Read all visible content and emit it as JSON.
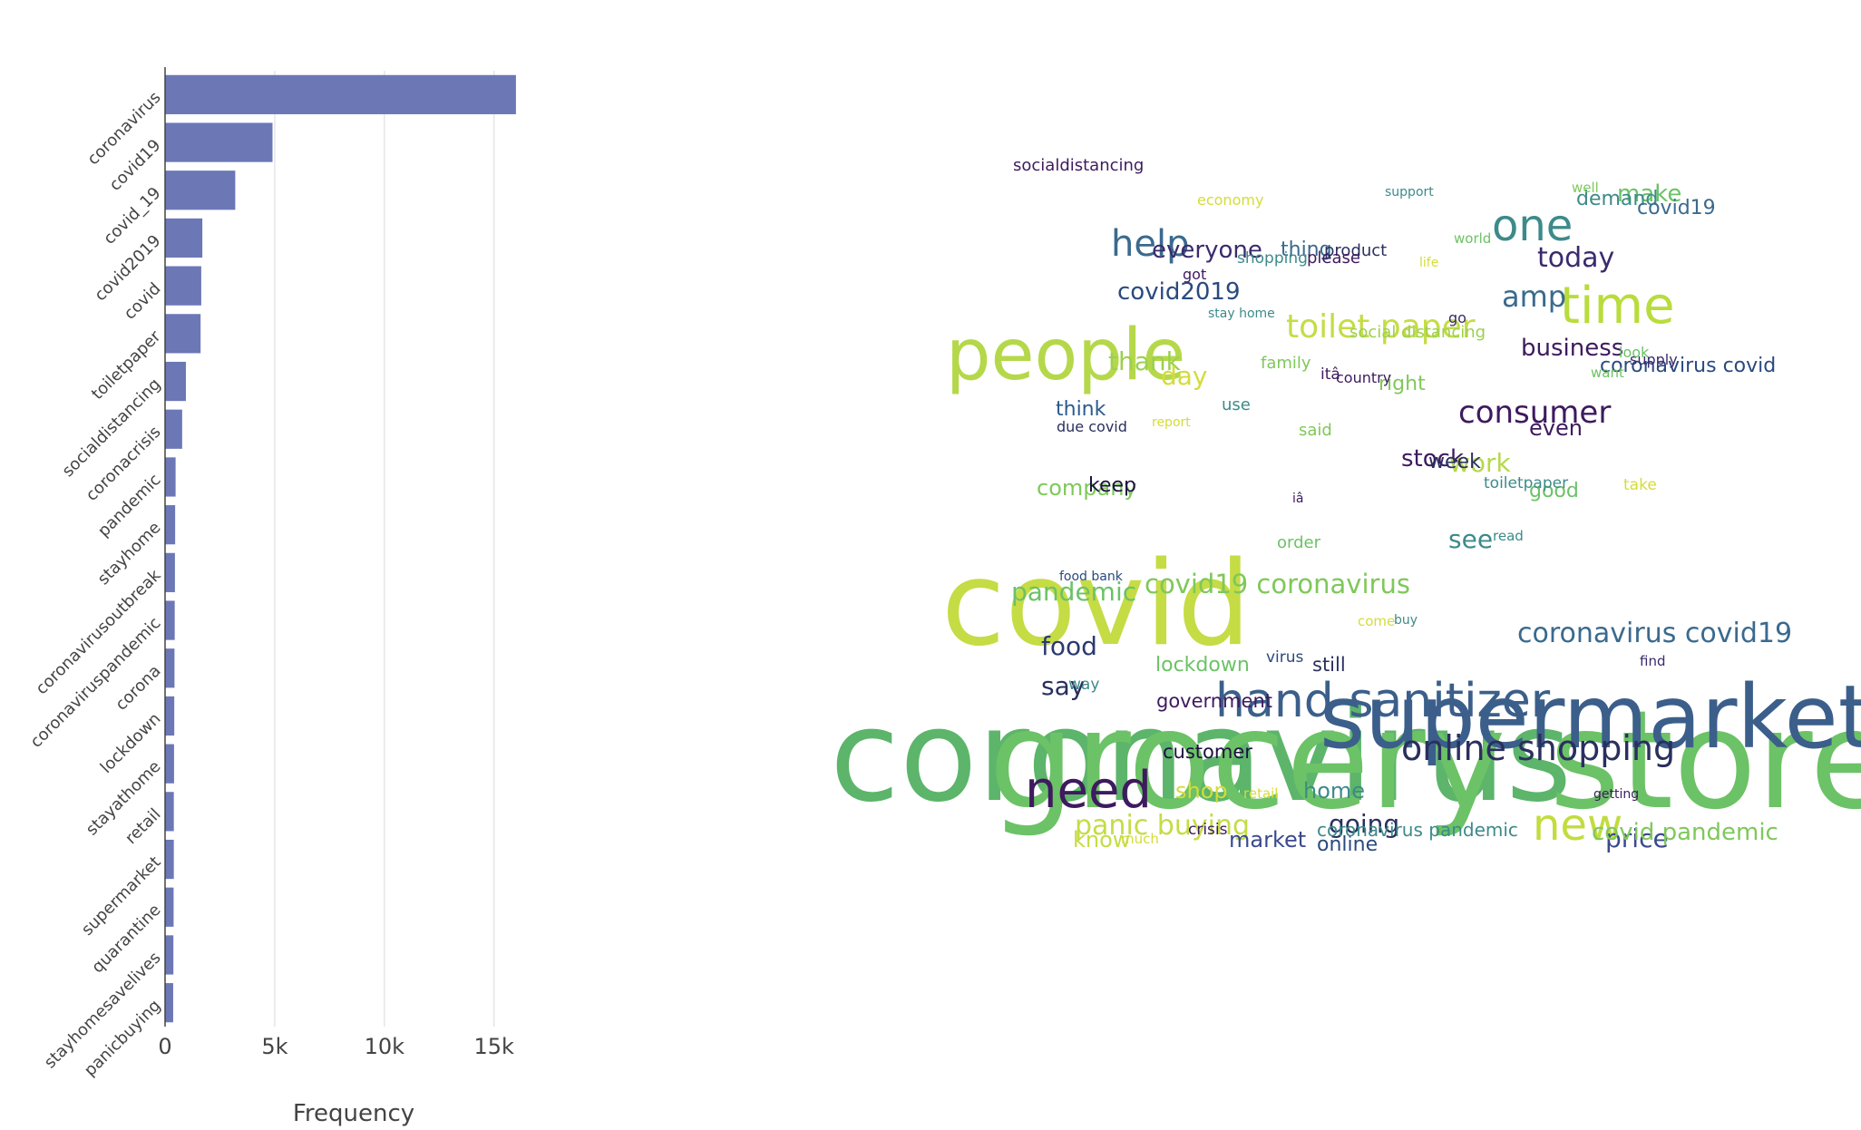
{
  "chart_data": [
    {
      "type": "bar",
      "orientation": "horizontal",
      "categories": [
        "coronavirus",
        "covid19",
        "covid_19",
        "covid2019",
        "covid",
        "toiletpaper",
        "socialdistancing",
        "coronacrisis",
        "pandemic",
        "stayhome",
        "coronavirusoutbreak",
        "coronaviruspandemic",
        "corona",
        "lockdown",
        "stayathome",
        "retail",
        "supermarket",
        "quarantine",
        "stayhomesavelives",
        "panicbuying"
      ],
      "values": [
        16000,
        4900,
        3200,
        1700,
        1650,
        1620,
        950,
        780,
        480,
        460,
        450,
        440,
        430,
        420,
        410,
        400,
        400,
        390,
        380,
        370
      ],
      "xlabel": "Frequency",
      "xlim": [
        0,
        16500
      ],
      "xticks": [
        0,
        5000,
        10000,
        15000
      ],
      "xtick_labels": [
        "0",
        "5k",
        "10k",
        "15k"
      ],
      "grid": true,
      "bar_color": "#6c77b6"
    },
    {
      "type": "wordcloud",
      "words": [
        {
          "text": "coronavirus",
          "weight": 120,
          "color": "#5cb56a"
        },
        {
          "text": "grocery store",
          "weight": 118,
          "color": "#6cc266"
        },
        {
          "text": "supermarket",
          "weight": 88,
          "color": "#3b5f8a"
        },
        {
          "text": "covid",
          "weight": 104,
          "color": "#c5dc45"
        },
        {
          "text": "people",
          "weight": 70,
          "color": "#b5d84a"
        },
        {
          "text": "hand sanitizer",
          "weight": 52,
          "color": "#3b5f8a"
        },
        {
          "text": "time",
          "weight": 50,
          "color": "#b9dc3c"
        },
        {
          "text": "need",
          "weight": 48,
          "color": "#3e1a5e"
        },
        {
          "text": "one",
          "weight": 44,
          "color": "#3d8a8a"
        },
        {
          "text": "new",
          "weight": 42,
          "color": "#c2dc3e"
        },
        {
          "text": "online shopping",
          "weight": 38,
          "color": "#2a2f5e"
        },
        {
          "text": "help",
          "weight": 36,
          "color": "#3a6a8e"
        },
        {
          "text": "toilet paper",
          "weight": 34,
          "color": "#c5dc45"
        },
        {
          "text": "consumer",
          "weight": 32,
          "color": "#3e1a5e"
        },
        {
          "text": "coronavirus covid19",
          "weight": 30,
          "color": "#3a6a8e"
        },
        {
          "text": "pandemic",
          "weight": 29,
          "color": "#6cc266"
        },
        {
          "text": "covid19 coronavirus",
          "weight": 29,
          "color": "#7fc85a"
        },
        {
          "text": "amp",
          "weight": 30,
          "color": "#3a6a8e"
        },
        {
          "text": "today",
          "weight": 28,
          "color": "#3a2a6e"
        },
        {
          "text": "food",
          "weight": 28,
          "color": "#2a3a6e"
        },
        {
          "text": "say",
          "weight": 28,
          "color": "#2a2f5e"
        },
        {
          "text": "panic buying",
          "weight": 28,
          "color": "#c5dc45"
        },
        {
          "text": "going",
          "weight": 27,
          "color": "#2a2f5e"
        },
        {
          "text": "price",
          "weight": 27,
          "color": "#3a4a8e"
        },
        {
          "text": "covid pandemic",
          "weight": 24,
          "color": "#7fc85a"
        },
        {
          "text": "covid2019",
          "weight": 24,
          "color": "#2a4a7e"
        },
        {
          "text": "thank",
          "weight": 24,
          "color": "#9cd050"
        },
        {
          "text": "day",
          "weight": 26,
          "color": "#d4dc3a"
        },
        {
          "text": "business",
          "weight": 24,
          "color": "#3e1a5e"
        },
        {
          "text": "everyone",
          "weight": 24,
          "color": "#3a2a6e"
        },
        {
          "text": "stock",
          "weight": 24,
          "color": "#3e1a5e"
        },
        {
          "text": "work",
          "weight": 24,
          "color": "#b5d84a"
        },
        {
          "text": "see",
          "weight": 26,
          "color": "#3d8a8a"
        },
        {
          "text": "make",
          "weight": 24,
          "color": "#6cc266"
        },
        {
          "text": "coronavirus covid",
          "weight": 21,
          "color": "#2a4a7e"
        },
        {
          "text": "home",
          "weight": 22,
          "color": "#3d8a8a"
        },
        {
          "text": "market",
          "weight": 22,
          "color": "#3a4a8e"
        },
        {
          "text": "know",
          "weight": 22,
          "color": "#c5dc45"
        },
        {
          "text": "shop",
          "weight": 22,
          "color": "#d4dc3a"
        },
        {
          "text": "online",
          "weight": 20,
          "color": "#2a4a7e"
        },
        {
          "text": "coronavirus pandemic",
          "weight": 18,
          "color": "#3d8a8a"
        },
        {
          "text": "lockdown",
          "weight": 20,
          "color": "#6cc266"
        },
        {
          "text": "company",
          "weight": 22,
          "color": "#7fc85a"
        },
        {
          "text": "keep",
          "weight": 20,
          "color": "#1e1040"
        },
        {
          "text": "even",
          "weight": 22,
          "color": "#3e1a5e"
        },
        {
          "text": "week",
          "weight": 20,
          "color": "#2a2f5e"
        },
        {
          "text": "right",
          "weight": 20,
          "color": "#7fc85a"
        },
        {
          "text": "thing",
          "weight": 20,
          "color": "#3a6a8e"
        },
        {
          "text": "think",
          "weight": 20,
          "color": "#2a5a8e"
        },
        {
          "text": "customer",
          "weight": 20,
          "color": "#1e1040"
        },
        {
          "text": "government",
          "weight": 20,
          "color": "#3e1a5e"
        },
        {
          "text": "demand",
          "weight": 20,
          "color": "#3d8a8a"
        },
        {
          "text": "covid19",
          "weight": 20,
          "color": "#3a6a8e"
        },
        {
          "text": "good",
          "weight": 20,
          "color": "#6cc266"
        },
        {
          "text": "still",
          "weight": 20,
          "color": "#2a2f5e"
        },
        {
          "text": "social distancing",
          "weight": 17,
          "color": "#9cd050"
        },
        {
          "text": "family",
          "weight": 17,
          "color": "#7fc85a"
        },
        {
          "text": "use",
          "weight": 17,
          "color": "#3d8a8a"
        },
        {
          "text": "said",
          "weight": 17,
          "color": "#7fc85a"
        },
        {
          "text": "order",
          "weight": 17,
          "color": "#6cc266"
        },
        {
          "text": "socialdistancing",
          "weight": 17,
          "color": "#3e1a5e"
        },
        {
          "text": "product",
          "weight": 17,
          "color": "#2a2f5e"
        },
        {
          "text": "please",
          "weight": 17,
          "color": "#3e1a5e"
        },
        {
          "text": "shopping",
          "weight": 16,
          "color": "#3d8a8a"
        },
        {
          "text": "virus",
          "weight": 16,
          "color": "#2a4a7e"
        },
        {
          "text": "toiletpaper",
          "weight": 16,
          "color": "#3d8a8a"
        },
        {
          "text": "supply",
          "weight": 16,
          "color": "#3a2a6e"
        },
        {
          "text": "look",
          "weight": 16,
          "color": "#6cc266"
        },
        {
          "text": "due covid",
          "weight": 15,
          "color": "#2a2f5e"
        },
        {
          "text": "crisis",
          "weight": 16,
          "color": "#3e1a5e"
        },
        {
          "text": "itâ",
          "weight": 16,
          "color": "#3e1a5e"
        },
        {
          "text": "country",
          "weight": 15,
          "color": "#3e1a5e"
        },
        {
          "text": "got",
          "weight": 15,
          "color": "#3e1a5e"
        },
        {
          "text": "go",
          "weight": 15,
          "color": "#3a2a6e"
        },
        {
          "text": "today",
          "weight": 0,
          "color": "#ffffff"
        },
        {
          "text": "economy",
          "weight": 15,
          "color": "#d4dc3a"
        },
        {
          "text": "support",
          "weight": 13,
          "color": "#3d8a8a"
        },
        {
          "text": "well",
          "weight": 14,
          "color": "#7fc85a"
        },
        {
          "text": "world",
          "weight": 14,
          "color": "#6cc266"
        },
        {
          "text": "life",
          "weight": 13,
          "color": "#d4dc3a"
        },
        {
          "text": "stay home",
          "weight": 13,
          "color": "#3d8a8a"
        },
        {
          "text": "want",
          "weight": 14,
          "color": "#6cc266"
        },
        {
          "text": "report",
          "weight": 13,
          "color": "#d4dc3a"
        },
        {
          "text": "take",
          "weight": 16,
          "color": "#d4dc3a"
        },
        {
          "text": "iâ",
          "weight": 13,
          "color": "#3e1a5e"
        },
        {
          "text": "read",
          "weight": 14,
          "color": "#3d8a8a"
        },
        {
          "text": "food bank",
          "weight": 13,
          "color": "#2a4a7e"
        },
        {
          "text": "come",
          "weight": 14,
          "color": "#d4dc3a"
        },
        {
          "text": "buy",
          "weight": 13,
          "color": "#3d8a8a"
        },
        {
          "text": "find",
          "weight": 14,
          "color": "#3a2a6e"
        },
        {
          "text": "way",
          "weight": 16,
          "color": "#3d8a8a"
        },
        {
          "text": "getting",
          "weight": 13,
          "color": "#3e1a5e"
        },
        {
          "text": "retail",
          "weight": 14,
          "color": "#d4dc3a"
        },
        {
          "text": "much",
          "weight": 14,
          "color": "#d4dc3a"
        }
      ]
    }
  ]
}
